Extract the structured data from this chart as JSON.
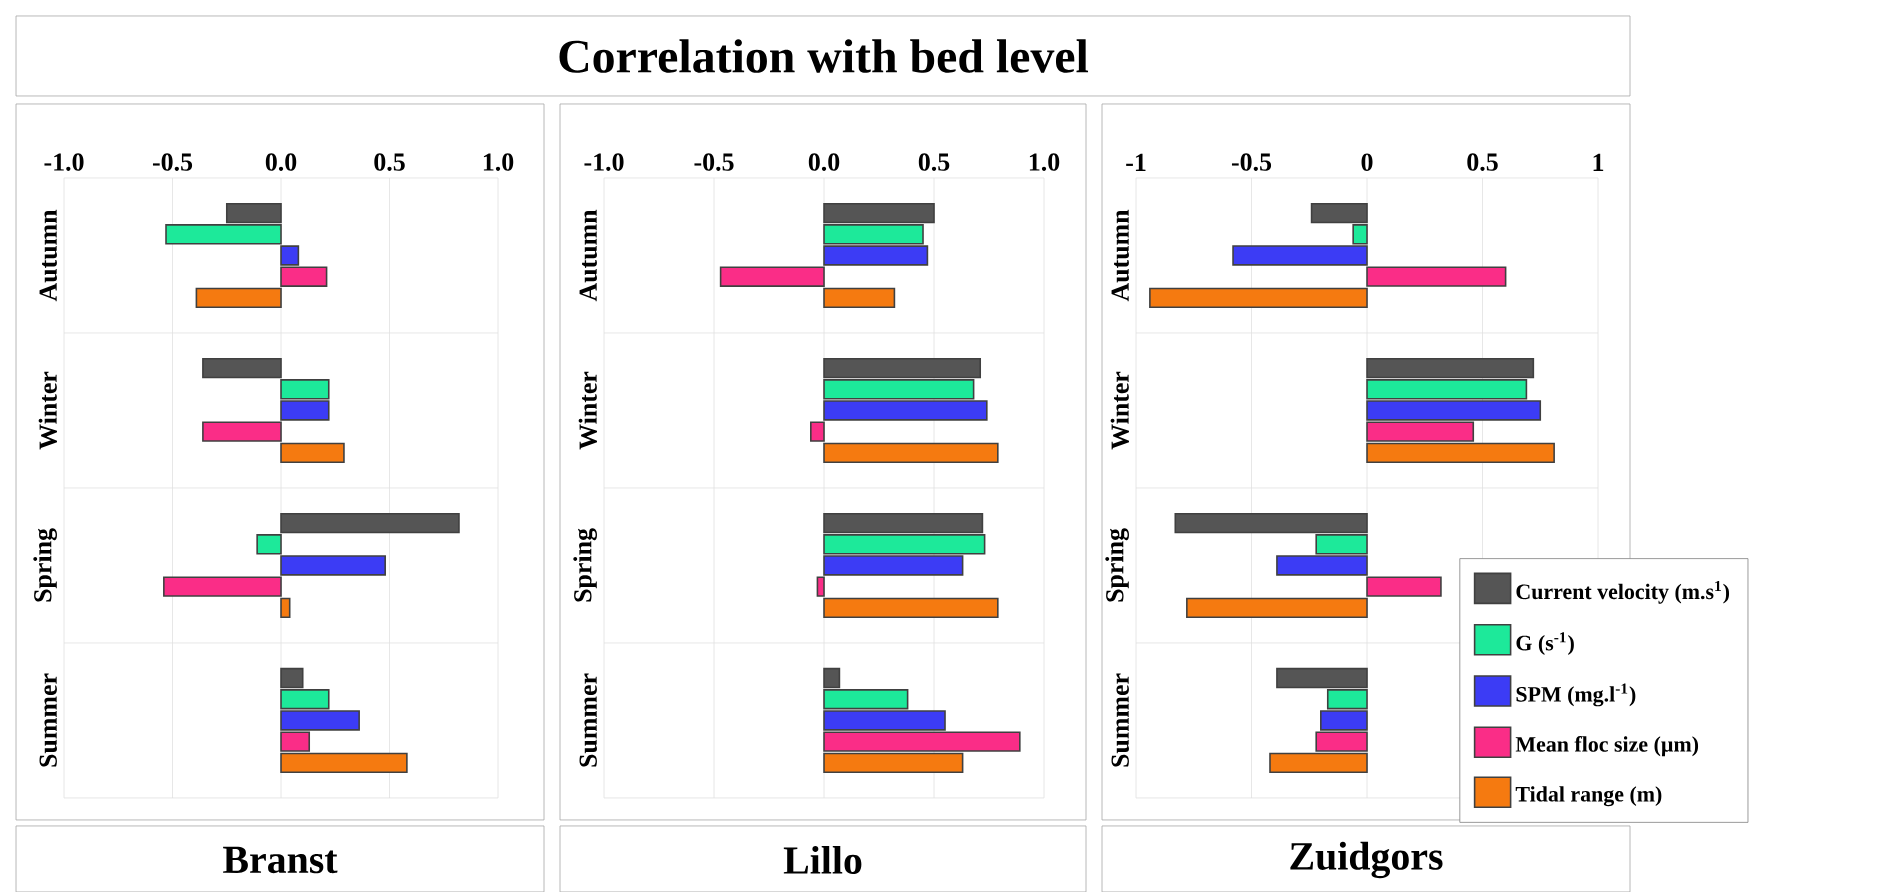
{
  "chart_data": [
    {
      "type": "other",
      "title": "Correlation with bed level"
    },
    {
      "type": "bar",
      "orientation": "horizontal",
      "xlabel": "Branst",
      "categories": [
        "Autumn",
        "Winter",
        "Spring",
        "Summer"
      ],
      "series": [
        {
          "color": "#555555",
          "values": [
            -0.25,
            -0.36,
            0.82,
            0.1
          ]
        },
        {
          "color": "#1de99a",
          "values": [
            -0.53,
            0.22,
            -0.11,
            0.22
          ]
        },
        {
          "color": "#3c3cf5",
          "values": [
            0.08,
            0.22,
            0.48,
            0.36
          ]
        },
        {
          "color": "#fa2d87",
          "values": [
            0.21,
            -0.36,
            -0.54,
            0.13
          ]
        },
        {
          "color": "#f57a10",
          "values": [
            -0.39,
            0.29,
            0.04,
            0.58
          ]
        }
      ],
      "xlim": [
        -1,
        1
      ],
      "xticks": [
        {
          "value": -1,
          "label": "-1.0"
        },
        {
          "value": -0.5,
          "label": "-0.5"
        },
        {
          "value": 0,
          "label": "0.0"
        },
        {
          "value": 0.5,
          "label": "0.5"
        },
        {
          "value": 1,
          "label": "1.0"
        }
      ],
      "grid": true
    },
    {
      "type": "bar",
      "orientation": "horizontal",
      "xlabel": "Lillo",
      "categories": [
        "Autumn",
        "Winter",
        "Spring",
        "Summer"
      ],
      "series": [
        {
          "color": "#555555",
          "values": [
            0.5,
            0.71,
            0.72,
            0.07
          ]
        },
        {
          "color": "#1de99a",
          "values": [
            0.45,
            0.68,
            0.73,
            0.38
          ]
        },
        {
          "color": "#3c3cf5",
          "values": [
            0.47,
            0.74,
            0.63,
            0.55
          ]
        },
        {
          "color": "#fa2d87",
          "values": [
            -0.47,
            -0.06,
            -0.03,
            0.89
          ]
        },
        {
          "color": "#f57a10",
          "values": [
            0.32,
            0.79,
            0.79,
            0.63
          ]
        }
      ],
      "xlim": [
        -1,
        1
      ],
      "xticks": [
        {
          "value": -1,
          "label": "-1.0"
        },
        {
          "value": -0.5,
          "label": "-0.5"
        },
        {
          "value": 0,
          "label": "0.0"
        },
        {
          "value": 0.5,
          "label": "0.5"
        },
        {
          "value": 1,
          "label": "1.0"
        }
      ],
      "grid": true
    },
    {
      "type": "bar",
      "orientation": "horizontal",
      "xlabel": "Zuidgors",
      "categories": [
        "Autumn",
        "Winter",
        "Spring",
        "Summer"
      ],
      "series": [
        {
          "name": "Current velocity  (m.s$^{1}$)",
          "color": "#555555",
          "values": [
            -0.24,
            0.72,
            -0.83,
            -0.39
          ]
        },
        {
          "name": "G (s$^{-1}$)",
          "color": "#1de99a",
          "values": [
            -0.06,
            0.69,
            -0.22,
            -0.17
          ]
        },
        {
          "name": "SPM (mg.l$^{-1}$)",
          "color": "#3c3cf5",
          "values": [
            -0.58,
            0.75,
            -0.39,
            -0.2
          ]
        },
        {
          "name": "Mean floc size  (µm)",
          "color": "#fa2d87",
          "values": [
            0.6,
            0.46,
            0.32,
            -0.22
          ]
        },
        {
          "name": "Tidal range  (m)",
          "color": "#f57a10",
          "values": [
            -0.94,
            0.81,
            -0.78,
            -0.42
          ]
        }
      ],
      "xlim": [
        -1,
        1
      ],
      "xticks": [
        -1,
        -0.5,
        0,
        0.5,
        1
      ],
      "grid": true,
      "legend": "bottom right"
    }
  ]
}
